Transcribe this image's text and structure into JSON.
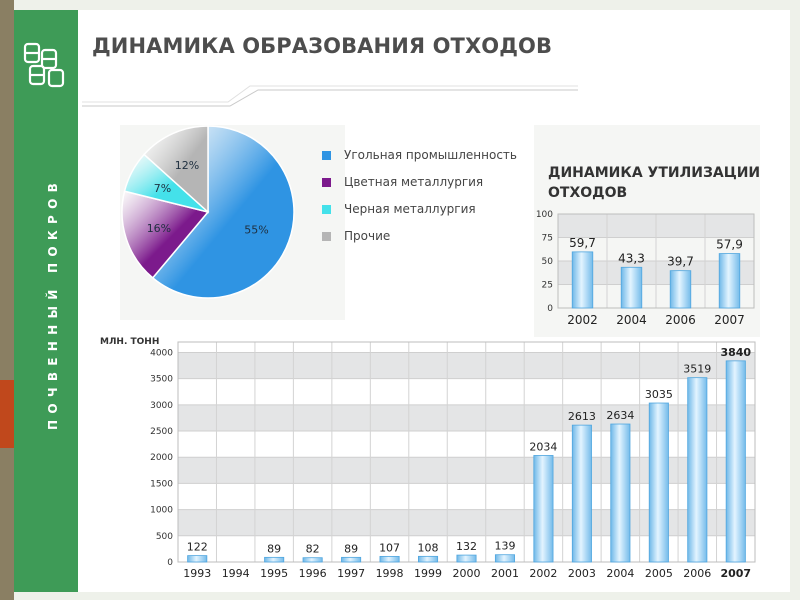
{
  "slide": {
    "title": "ДИНАМИКА ОБРАЗОВАНИЯ ОТХОДОВ",
    "sidebar_text": "ПОЧВЕННЫЙ ПОКРОВ"
  },
  "colors": {
    "sidebar": "#3e9b57",
    "accent": "#c0481c",
    "bar_fill": "#9fd2f2",
    "coal": "#2f94e3",
    "nonferrous": "#7c1a8c",
    "ferrous": "#44e1ea",
    "other": "#b5b5b5"
  },
  "chart_data": [
    {
      "type": "pie",
      "title": "",
      "slices": [
        {
          "label": "Угольная промышленность",
          "value": 55,
          "display": "55%",
          "color": "#2f94e3"
        },
        {
          "label": "Цветная металлургия",
          "value": 16,
          "display": "16%",
          "color": "#7c1a8c"
        },
        {
          "label": "Черная металлургия",
          "value": 7,
          "display": "7%",
          "color": "#44e1ea"
        },
        {
          "label": "Прочие",
          "value": 12,
          "display": "12%",
          "color": "#b5b5b5"
        }
      ],
      "legend_position": "right"
    },
    {
      "type": "bar",
      "title": "ДИНАМИКА УТИЛИЗАЦИИ ОТХОДОВ",
      "categories": [
        "2002",
        "2004",
        "2006",
        "2007"
      ],
      "values": [
        59.7,
        43.3,
        39.7,
        57.9
      ],
      "value_labels": [
        "59,7",
        "43,3",
        "39,7",
        "57,9"
      ],
      "ylim": [
        0,
        100
      ],
      "yticks": [
        0,
        25,
        50,
        75,
        100
      ],
      "grid": true
    },
    {
      "type": "bar",
      "title": "",
      "ylabel": "МЛН. ТОНН",
      "categories": [
        "1993",
        "1994",
        "1995",
        "1996",
        "1997",
        "1998",
        "1999",
        "2000",
        "2001",
        "2002",
        "2003",
        "2004",
        "2005",
        "2006",
        "2007"
      ],
      "values": [
        122,
        null,
        89,
        82,
        89,
        107,
        108,
        132,
        139,
        2034,
        2613,
        2634,
        3035,
        3519,
        3840
      ],
      "value_labels": [
        "122",
        "",
        "89",
        "82",
        "89",
        "107",
        "108",
        "132",
        "139",
        "2034",
        "2613",
        "2634",
        "3035",
        "3519",
        "3840"
      ],
      "ylim": [
        0,
        4200
      ],
      "yticks": [
        0,
        500,
        1000,
        1500,
        2000,
        2500,
        3000,
        3500,
        4000
      ],
      "highlight_last": true,
      "grid": true
    }
  ]
}
